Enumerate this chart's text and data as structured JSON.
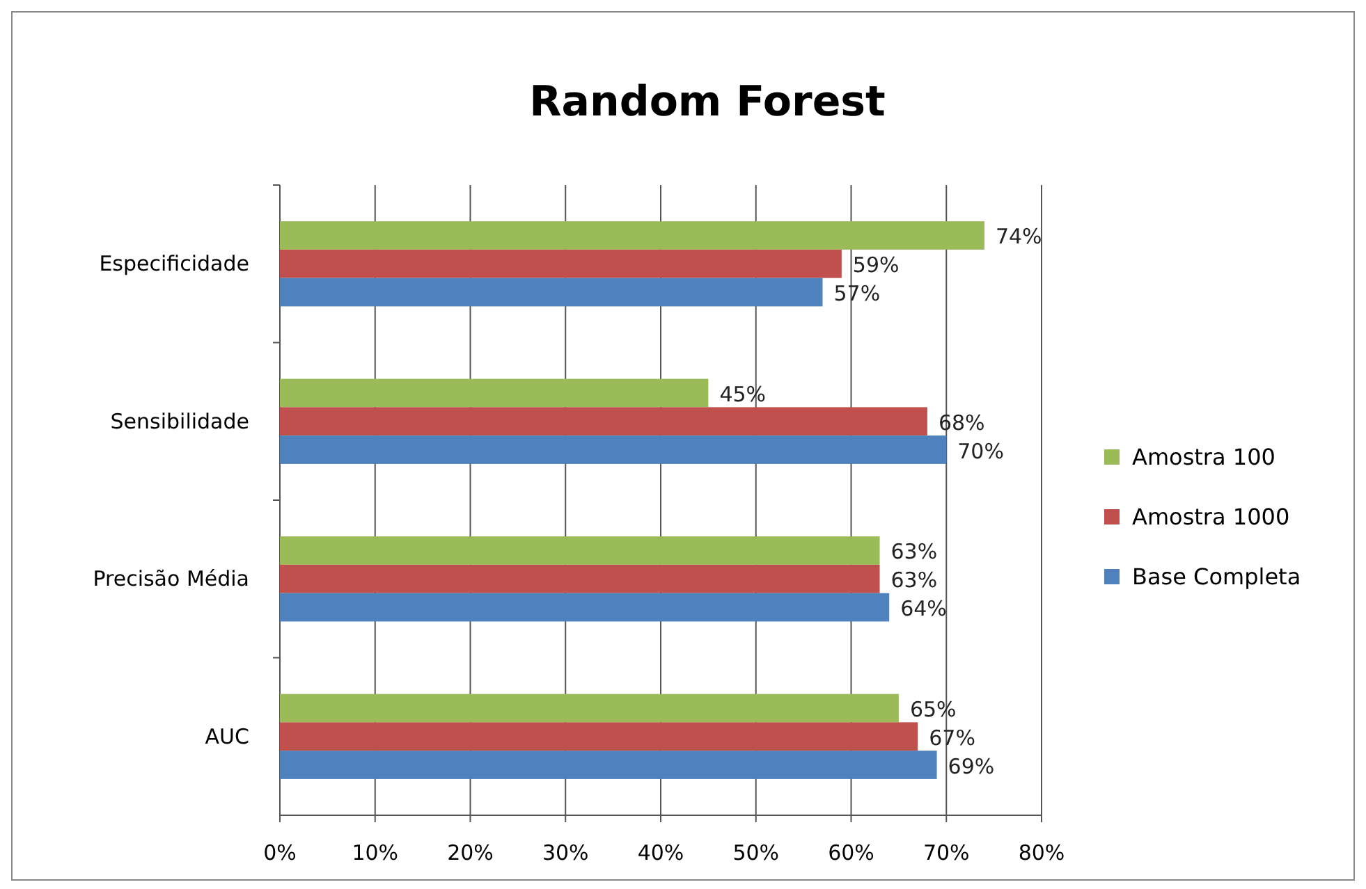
{
  "chart_data": {
    "type": "bar",
    "title": "Random Forest",
    "orientation": "horizontal",
    "categories": [
      "Especificidade",
      "Sensibilidade",
      "Precisão Média",
      "AUC"
    ],
    "series": [
      {
        "name": "Amostra 100",
        "color": "#9bbb59",
        "values": [
          74,
          45,
          63,
          65
        ],
        "value_labels": [
          "74%",
          "45%",
          "63%",
          "65%"
        ]
      },
      {
        "name": "Amostra 1000",
        "color": "#c0504d",
        "values": [
          59,
          68,
          63,
          67
        ],
        "value_labels": [
          "59%",
          "68%",
          "63%",
          "67%"
        ]
      },
      {
        "name": "Base Completa",
        "color": "#4f81bd",
        "values": [
          57,
          70,
          64,
          69
        ],
        "value_labels": [
          "57%",
          "70%",
          "64%",
          "69%"
        ]
      }
    ],
    "xlim": [
      0,
      80
    ],
    "xticks": [
      {
        "value": 0,
        "label": "0%"
      },
      {
        "value": 10,
        "label": "10%"
      },
      {
        "value": 20,
        "label": "20%"
      },
      {
        "value": 30,
        "label": "30%"
      },
      {
        "value": 40,
        "label": "40%"
      },
      {
        "value": 50,
        "label": "50%"
      },
      {
        "value": 60,
        "label": "60%"
      },
      {
        "value": 70,
        "label": "70%"
      },
      {
        "value": 80,
        "label": "80%"
      }
    ],
    "grid": "x",
    "legend": "right"
  }
}
